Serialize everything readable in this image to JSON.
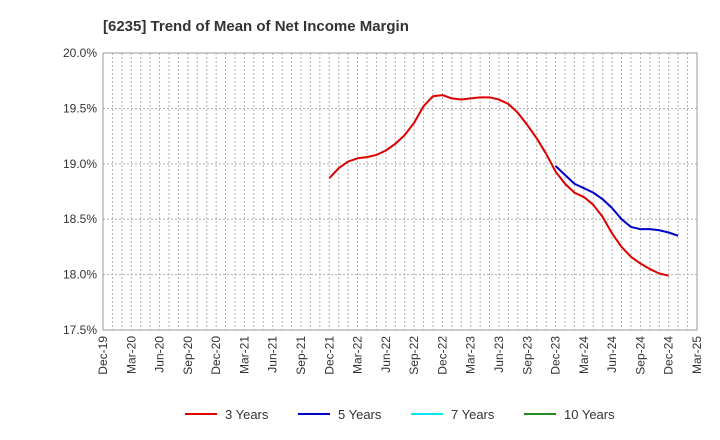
{
  "chart_data": {
    "type": "line",
    "title": "[6235]  Trend of Mean of Net Income Margin",
    "xlabel": "",
    "ylabel": "",
    "ylim": [
      17.5,
      20.0
    ],
    "y_ticks": [
      17.5,
      18.0,
      18.5,
      19.0,
      19.5,
      20.0
    ],
    "y_tick_labels": [
      "17.5%",
      "18.0%",
      "18.5%",
      "19.0%",
      "19.5%",
      "20.0%"
    ],
    "x_tick_labels": [
      "Dec-19",
      "Mar-20",
      "Jun-20",
      "Sep-20",
      "Dec-20",
      "Mar-21",
      "Jun-21",
      "Sep-21",
      "Dec-21",
      "Mar-22",
      "Jun-22",
      "Sep-22",
      "Dec-22",
      "Mar-23",
      "Jun-23",
      "Sep-23",
      "Dec-23",
      "Mar-24",
      "Jun-24",
      "Sep-24",
      "Dec-24",
      "Mar-25"
    ],
    "x_start": "2019-12",
    "grid": true,
    "legend_position": "bottom",
    "series": [
      {
        "name": "3 Years",
        "color": "#dd0000",
        "start": "2021-12",
        "values": [
          18.87,
          18.96,
          19.02,
          19.05,
          19.06,
          19.08,
          19.12,
          19.18,
          19.26,
          19.37,
          19.52,
          19.61,
          19.62,
          19.59,
          19.58,
          19.59,
          19.6,
          19.6,
          19.58,
          19.54,
          19.46,
          19.35,
          19.23,
          19.09,
          18.93,
          18.82,
          18.74,
          18.7,
          18.63,
          18.52,
          18.37,
          18.25,
          18.16,
          18.1,
          18.05,
          18.01,
          17.99
        ]
      },
      {
        "name": "5 Years",
        "color": "#0000cc",
        "start": "2023-12",
        "values": [
          18.98,
          18.9,
          18.82,
          18.78,
          18.74,
          18.68,
          18.6,
          18.5,
          18.43,
          18.41,
          18.41,
          18.4,
          18.38,
          18.35
        ]
      },
      {
        "name": "7 Years",
        "color": "#00e5ee",
        "start": null,
        "values": []
      },
      {
        "name": "10 Years",
        "color": "#228b22",
        "start": null,
        "values": []
      }
    ]
  }
}
